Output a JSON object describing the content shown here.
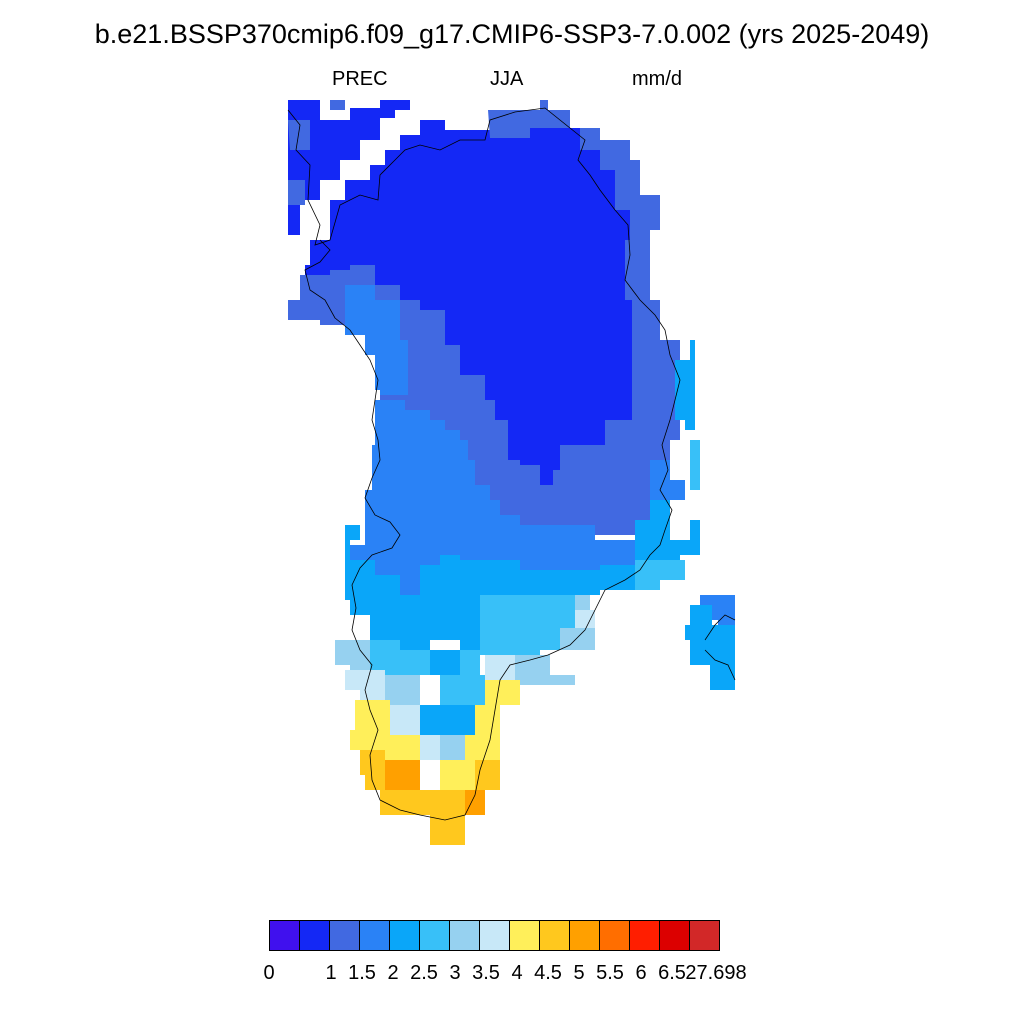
{
  "header": {
    "title": "b.e21.BSSP370cmip6.f09_g17.CMIP6-SSP3-7.0.002 (yrs 2025-2049)",
    "left": "PREC",
    "center": "JJA",
    "right": "mm/d"
  },
  "colorbar": {
    "colors": [
      "#4010ee",
      "#1428f5",
      "#4169e1",
      "#2a82f6",
      "#0aa6f9",
      "#38c0f8",
      "#96d1f0",
      "#c8e8f8",
      "#ffef5a",
      "#ffc81e",
      "#ffa000",
      "#ff6e00",
      "#ff1e00",
      "#dc0000",
      "#d22828"
    ],
    "labels": [
      "0",
      "1",
      "1.5",
      "2",
      "2.5",
      "3",
      "3.5",
      "4",
      "4.5",
      "5",
      "5.5",
      "6",
      "6.5",
      "27.698"
    ]
  },
  "map": {
    "region": "Greenland",
    "colors_used": {
      "very_dry": "#1428f5",
      "dry": "#4169e1",
      "moderate": "#2a82f6",
      "wet": "#0aa6f9",
      "wetter": "#38c0f8",
      "light": "#96d1f0",
      "pale": "#c8e8f8",
      "yellow": "#ffef5a",
      "gold": "#ffc81e",
      "orange": "#ffa000"
    }
  }
}
